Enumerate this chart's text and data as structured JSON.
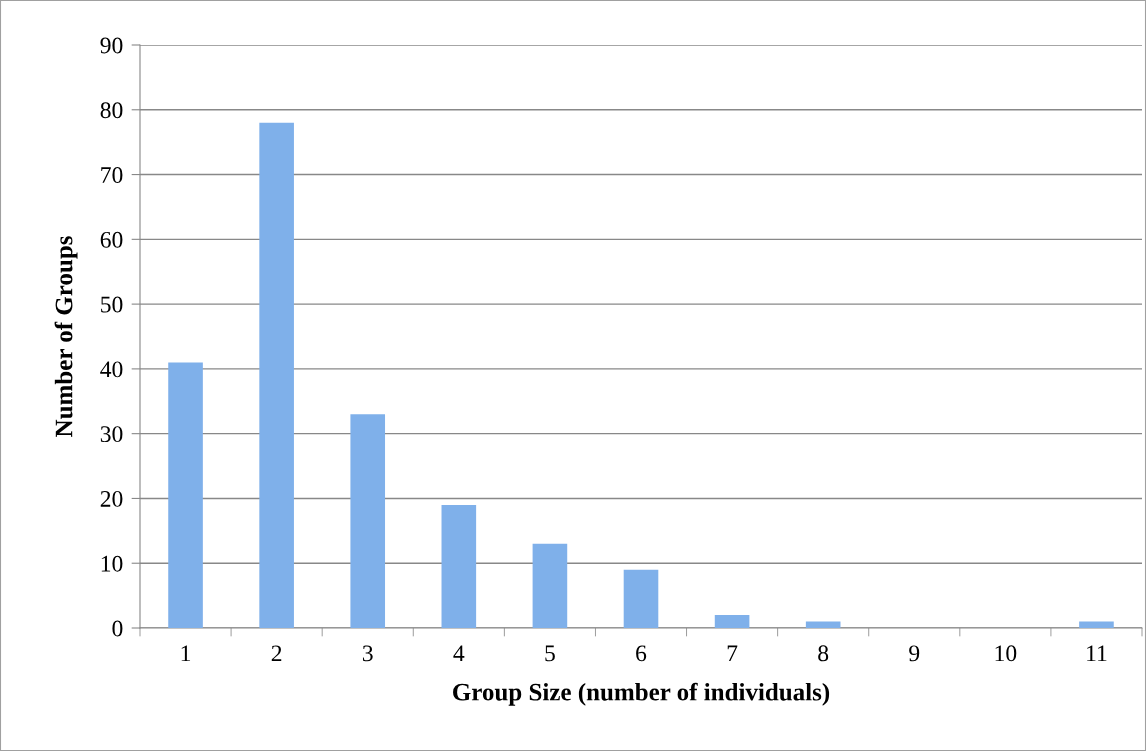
{
  "chart_data": {
    "type": "bar",
    "xlabel": "Group Size (number of individuals)",
    "ylabel": "Number of Groups",
    "categories": [
      "1",
      "2",
      "3",
      "4",
      "5",
      "6",
      "7",
      "8",
      "9",
      "10",
      "11"
    ],
    "values": [
      41,
      78,
      33,
      19,
      13,
      9,
      2,
      1,
      0,
      0,
      1
    ],
    "color": "#7fb0ea",
    "ylim": [
      0,
      90
    ],
    "yticks": [
      0,
      10,
      20,
      30,
      40,
      50,
      60,
      70,
      80,
      90
    ],
    "grid": "y"
  }
}
